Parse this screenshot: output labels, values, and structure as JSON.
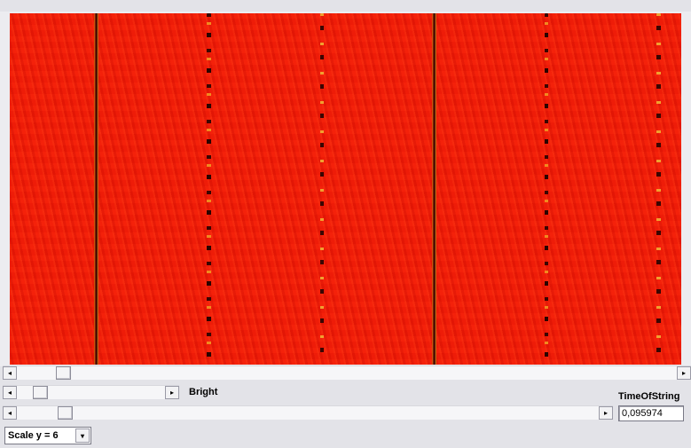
{
  "controls": {
    "bright_label": "Bright",
    "time_label": "TimeOfString",
    "time_value": "0,095974",
    "scale_value": "Scale y = 6"
  },
  "icons": {
    "left_arrow": "◂",
    "right_arrow": "▸",
    "down_arrow": "▾"
  },
  "colors": {
    "canvas_base": "#f01c08",
    "trace_dark": "#2a0400",
    "trace_highlight": "#f08a20"
  }
}
